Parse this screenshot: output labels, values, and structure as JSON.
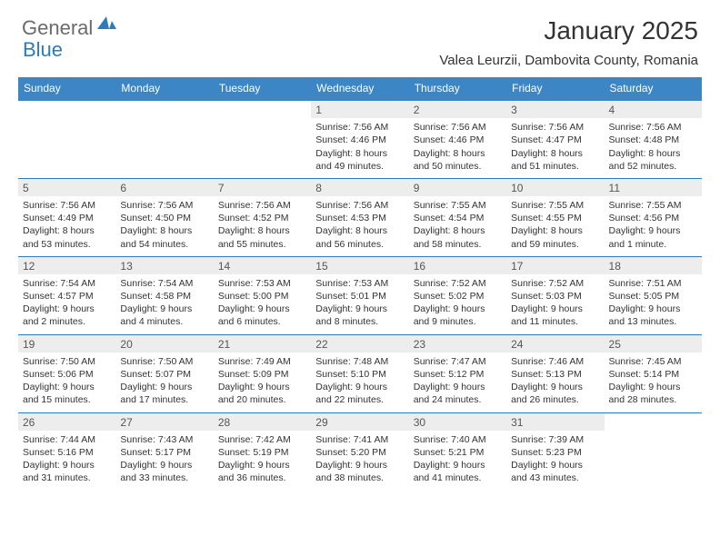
{
  "logo": {
    "text1": "General",
    "text2": "Blue"
  },
  "title": "January 2025",
  "location": "Valea Leurzii, Dambovita County, Romania",
  "colors": {
    "header_bg": "#3d86c6",
    "header_text": "#ffffff",
    "daynum_bg": "#ededed",
    "border": "#2d7bbf",
    "logo_gray": "#6b6b6b",
    "logo_blue": "#2d7bbf"
  },
  "day_headers": [
    "Sunday",
    "Monday",
    "Tuesday",
    "Wednesday",
    "Thursday",
    "Friday",
    "Saturday"
  ],
  "weeks": [
    [
      null,
      null,
      null,
      {
        "n": "1",
        "sr": "7:56 AM",
        "ss": "4:46 PM",
        "d1": "8 hours",
        "d2": "49 minutes."
      },
      {
        "n": "2",
        "sr": "7:56 AM",
        "ss": "4:46 PM",
        "d1": "8 hours",
        "d2": "50 minutes."
      },
      {
        "n": "3",
        "sr": "7:56 AM",
        "ss": "4:47 PM",
        "d1": "8 hours",
        "d2": "51 minutes."
      },
      {
        "n": "4",
        "sr": "7:56 AM",
        "ss": "4:48 PM",
        "d1": "8 hours",
        "d2": "52 minutes."
      }
    ],
    [
      {
        "n": "5",
        "sr": "7:56 AM",
        "ss": "4:49 PM",
        "d1": "8 hours",
        "d2": "53 minutes."
      },
      {
        "n": "6",
        "sr": "7:56 AM",
        "ss": "4:50 PM",
        "d1": "8 hours",
        "d2": "54 minutes."
      },
      {
        "n": "7",
        "sr": "7:56 AM",
        "ss": "4:52 PM",
        "d1": "8 hours",
        "d2": "55 minutes."
      },
      {
        "n": "8",
        "sr": "7:56 AM",
        "ss": "4:53 PM",
        "d1": "8 hours",
        "d2": "56 minutes."
      },
      {
        "n": "9",
        "sr": "7:55 AM",
        "ss": "4:54 PM",
        "d1": "8 hours",
        "d2": "58 minutes."
      },
      {
        "n": "10",
        "sr": "7:55 AM",
        "ss": "4:55 PM",
        "d1": "8 hours",
        "d2": "59 minutes."
      },
      {
        "n": "11",
        "sr": "7:55 AM",
        "ss": "4:56 PM",
        "d1": "9 hours",
        "d2": "1 minute."
      }
    ],
    [
      {
        "n": "12",
        "sr": "7:54 AM",
        "ss": "4:57 PM",
        "d1": "9 hours",
        "d2": "2 minutes."
      },
      {
        "n": "13",
        "sr": "7:54 AM",
        "ss": "4:58 PM",
        "d1": "9 hours",
        "d2": "4 minutes."
      },
      {
        "n": "14",
        "sr": "7:53 AM",
        "ss": "5:00 PM",
        "d1": "9 hours",
        "d2": "6 minutes."
      },
      {
        "n": "15",
        "sr": "7:53 AM",
        "ss": "5:01 PM",
        "d1": "9 hours",
        "d2": "8 minutes."
      },
      {
        "n": "16",
        "sr": "7:52 AM",
        "ss": "5:02 PM",
        "d1": "9 hours",
        "d2": "9 minutes."
      },
      {
        "n": "17",
        "sr": "7:52 AM",
        "ss": "5:03 PM",
        "d1": "9 hours",
        "d2": "11 minutes."
      },
      {
        "n": "18",
        "sr": "7:51 AM",
        "ss": "5:05 PM",
        "d1": "9 hours",
        "d2": "13 minutes."
      }
    ],
    [
      {
        "n": "19",
        "sr": "7:50 AM",
        "ss": "5:06 PM",
        "d1": "9 hours",
        "d2": "15 minutes."
      },
      {
        "n": "20",
        "sr": "7:50 AM",
        "ss": "5:07 PM",
        "d1": "9 hours",
        "d2": "17 minutes."
      },
      {
        "n": "21",
        "sr": "7:49 AM",
        "ss": "5:09 PM",
        "d1": "9 hours",
        "d2": "20 minutes."
      },
      {
        "n": "22",
        "sr": "7:48 AM",
        "ss": "5:10 PM",
        "d1": "9 hours",
        "d2": "22 minutes."
      },
      {
        "n": "23",
        "sr": "7:47 AM",
        "ss": "5:12 PM",
        "d1": "9 hours",
        "d2": "24 minutes."
      },
      {
        "n": "24",
        "sr": "7:46 AM",
        "ss": "5:13 PM",
        "d1": "9 hours",
        "d2": "26 minutes."
      },
      {
        "n": "25",
        "sr": "7:45 AM",
        "ss": "5:14 PM",
        "d1": "9 hours",
        "d2": "28 minutes."
      }
    ],
    [
      {
        "n": "26",
        "sr": "7:44 AM",
        "ss": "5:16 PM",
        "d1": "9 hours",
        "d2": "31 minutes."
      },
      {
        "n": "27",
        "sr": "7:43 AM",
        "ss": "5:17 PM",
        "d1": "9 hours",
        "d2": "33 minutes."
      },
      {
        "n": "28",
        "sr": "7:42 AM",
        "ss": "5:19 PM",
        "d1": "9 hours",
        "d2": "36 minutes."
      },
      {
        "n": "29",
        "sr": "7:41 AM",
        "ss": "5:20 PM",
        "d1": "9 hours",
        "d2": "38 minutes."
      },
      {
        "n": "30",
        "sr": "7:40 AM",
        "ss": "5:21 PM",
        "d1": "9 hours",
        "d2": "41 minutes."
      },
      {
        "n": "31",
        "sr": "7:39 AM",
        "ss": "5:23 PM",
        "d1": "9 hours",
        "d2": "43 minutes."
      },
      null
    ]
  ],
  "labels": {
    "sunrise": "Sunrise:",
    "sunset": "Sunset:",
    "daylight": "Daylight:",
    "and": "and"
  }
}
